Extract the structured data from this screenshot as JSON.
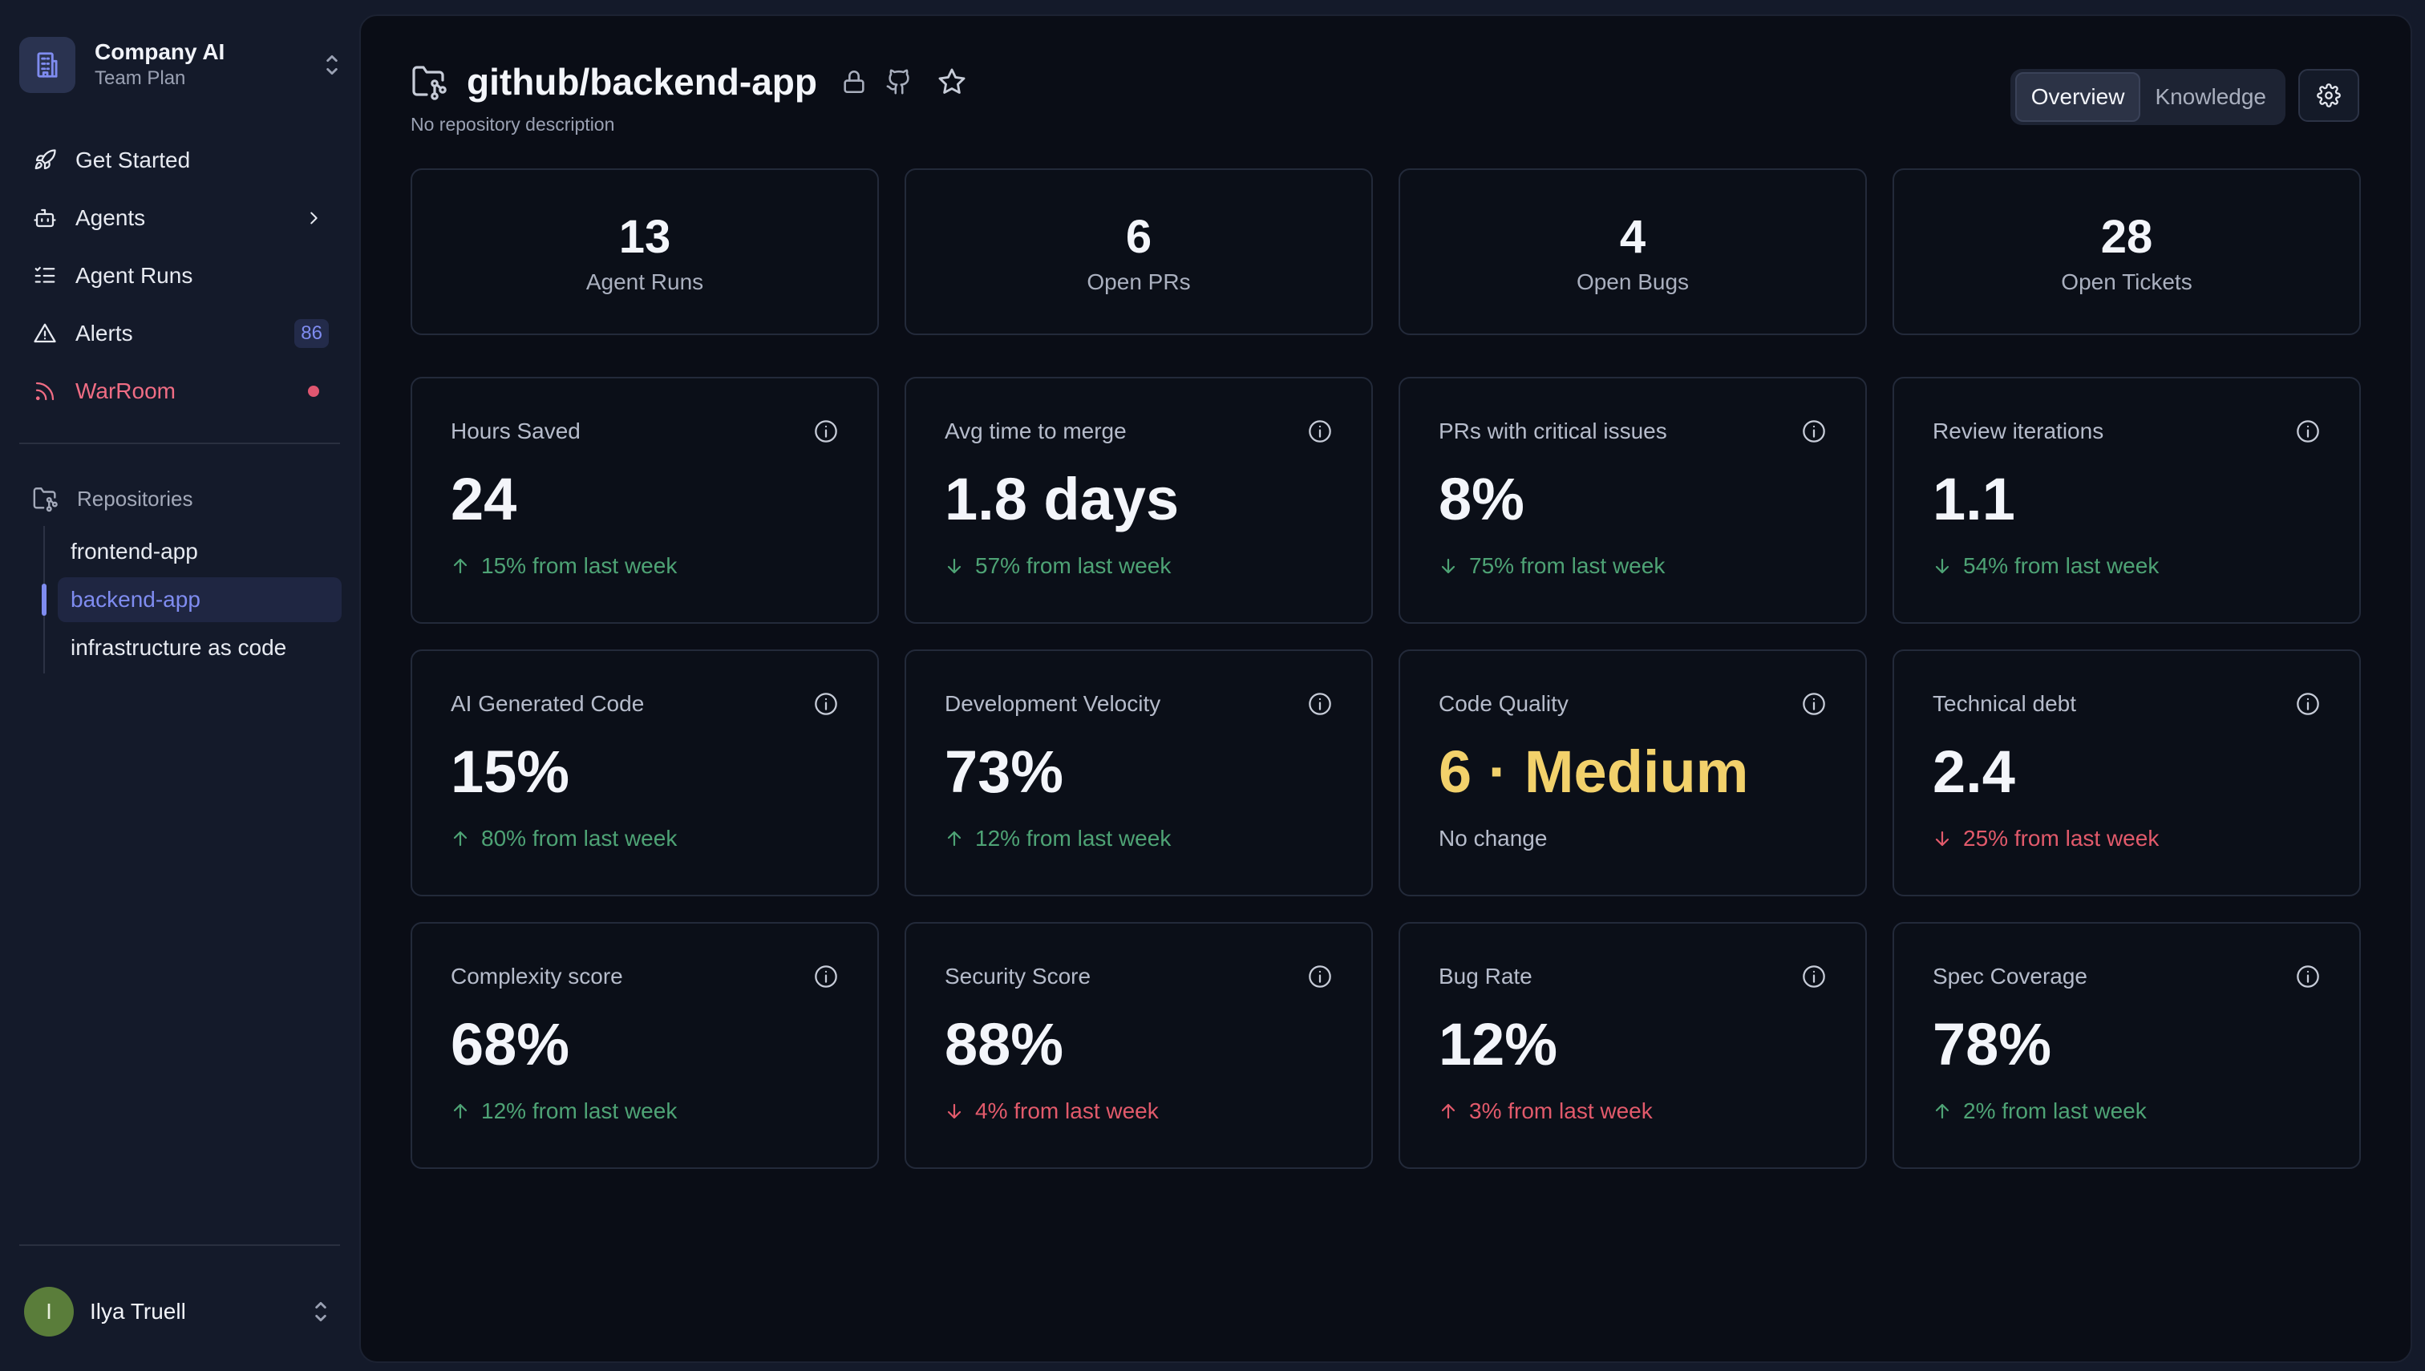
{
  "org": {
    "name": "Company AI",
    "plan": "Team Plan"
  },
  "nav": [
    {
      "label": "Get Started",
      "icon": "rocket-icon"
    },
    {
      "label": "Agents",
      "icon": "robot-icon"
    },
    {
      "label": "Agent Runs",
      "icon": "list-icon"
    },
    {
      "label": "Alerts",
      "icon": "warning-icon",
      "badge": "86"
    },
    {
      "label": "WarRoom",
      "icon": "rss-icon"
    }
  ],
  "repos": {
    "heading": "Repositories",
    "items": [
      "frontend-app",
      "backend-app",
      "infrastructure as code"
    ],
    "selected": "backend-app"
  },
  "user": {
    "name": "Ilya Truell",
    "initial": "I"
  },
  "header": {
    "title": "github/backend-app",
    "description": "No repository description",
    "tabs": [
      "Overview",
      "Knowledge"
    ],
    "active_tab": "Overview"
  },
  "stats": [
    {
      "value": "13",
      "label": "Agent Runs"
    },
    {
      "value": "6",
      "label": "Open PRs"
    },
    {
      "value": "4",
      "label": "Open Bugs"
    },
    {
      "value": "28",
      "label": "Open Tickets"
    }
  ],
  "metrics": [
    {
      "label": "Hours Saved",
      "value": "24",
      "change": "15% from last week",
      "direction": "up",
      "tone": "good"
    },
    {
      "label": "Avg time to merge",
      "value": "1.8 days",
      "change": "57% from last week",
      "direction": "down",
      "tone": "good"
    },
    {
      "label": "PRs with critical issues",
      "value": "8%",
      "change": "75% from last week",
      "direction": "down",
      "tone": "good"
    },
    {
      "label": "Review iterations",
      "value": "1.1",
      "change": "54% from last week",
      "direction": "down",
      "tone": "good"
    },
    {
      "label": "AI Generated Code",
      "value": "15%",
      "change": "80% from last week",
      "direction": "up",
      "tone": "good"
    },
    {
      "label": "Development Velocity",
      "value": "73%",
      "change": "12% from last week",
      "direction": "up",
      "tone": "good"
    },
    {
      "label": "Code Quality",
      "value": "6 · Medium",
      "change": "No change",
      "direction": "none",
      "tone": "neutral",
      "value_color": "#f2d16b"
    },
    {
      "label": "Technical debt",
      "value": "2.4",
      "change": "25% from last week",
      "direction": "down",
      "tone": "bad"
    },
    {
      "label": "Complexity score",
      "value": "68%",
      "change": "12% from last week",
      "direction": "up",
      "tone": "good"
    },
    {
      "label": "Security Score",
      "value": "88%",
      "change": "4% from last week",
      "direction": "down",
      "tone": "bad"
    },
    {
      "label": "Bug Rate",
      "value": "12%",
      "change": "3% from last week",
      "direction": "up",
      "tone": "bad"
    },
    {
      "label": "Spec Coverage",
      "value": "78%",
      "change": "2% from last week",
      "direction": "up",
      "tone": "good"
    }
  ],
  "colors": {
    "accent": "#7f8cf0",
    "good": "#4ea375",
    "bad": "#e25a6b",
    "warroom": "#f06d84",
    "highlight": "#f2d16b"
  }
}
